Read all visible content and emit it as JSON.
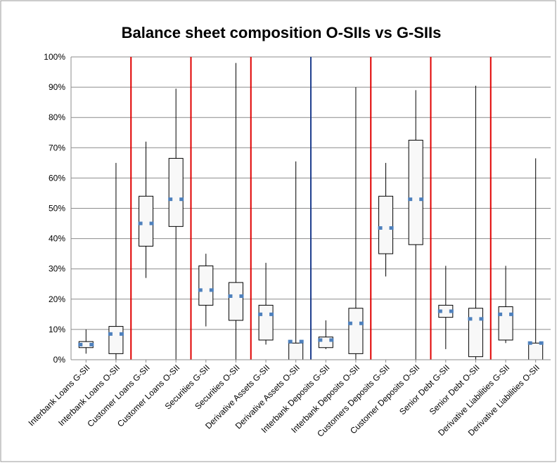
{
  "chart_data": {
    "type": "box",
    "title": "Balance sheet composition O-SIIs vs G-SIIs",
    "categories": [
      "Interbank Loans G-SII",
      "Interbank Loans O-SII",
      "Customer Loans G-SII",
      "Customer Loans  O-SII",
      "Securities G-SII",
      "Securities O-SII",
      "Derivative Assets G-SII",
      "Derivative Assets O-SII",
      "Interbank Deposits G-SII",
      "Interbank Deposits O-SII",
      "Customers Deposits G-SII",
      "Customer Deposits O-SII",
      "Senior Debt G-SII",
      "Senior Debt O-SII",
      "Derivative Liabilities G-SII",
      "Derivative Liabilities O-SII"
    ],
    "min": [
      2,
      0,
      27,
      0,
      11,
      0,
      5,
      0,
      3.5,
      0,
      27.5,
      0,
      3.5,
      0,
      5.5,
      0
    ],
    "q1": [
      4,
      2,
      37.5,
      44,
      18,
      13,
      6.5,
      0,
      4,
      2,
      35,
      38,
      14,
      1,
      6.5,
      0
    ],
    "median": [
      5,
      8.5,
      45,
      53,
      23,
      21,
      15,
      6,
      6.5,
      12,
      43.5,
      53,
      16,
      13.5,
      15,
      5.5
    ],
    "q3": [
      6,
      11,
      54,
      66.5,
      31,
      25.5,
      18,
      5.5,
      7.5,
      17,
      54,
      72.5,
      18,
      17,
      17.5,
      5.5
    ],
    "max": [
      10,
      65,
      72,
      89.5,
      35,
      98,
      32,
      65.5,
      13,
      90,
      65,
      89,
      31,
      90.5,
      31,
      66.5
    ],
    "color": "#4f81bd",
    "box_fill": "#f8f8f8",
    "ylim": [
      0,
      100
    ],
    "yticks": [
      {
        "value": 0,
        "label": "0%"
      },
      {
        "value": 10,
        "label": "10%"
      },
      {
        "value": 20,
        "label": "20%"
      },
      {
        "value": 30,
        "label": "30%"
      },
      {
        "value": 40,
        "label": "40%"
      },
      {
        "value": 50,
        "label": "50%"
      },
      {
        "value": 60,
        "label": "60%"
      },
      {
        "value": 70,
        "label": "70%"
      },
      {
        "value": 80,
        "label": "80%"
      },
      {
        "value": 90,
        "label": "90%"
      },
      {
        "value": 100,
        "label": "100%"
      }
    ],
    "grid": true
  }
}
